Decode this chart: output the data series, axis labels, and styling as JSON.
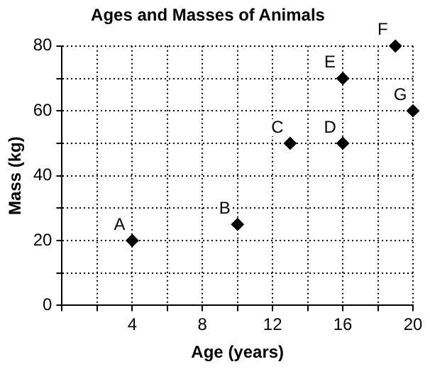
{
  "chart_data": {
    "type": "scatter",
    "title": "Ages and Masses of Animals",
    "xlabel": "Age (years)",
    "ylabel": "Mass (kg)",
    "x": [
      4,
      10,
      13,
      16,
      16,
      19,
      20
    ],
    "series": [
      {
        "color": "#000000",
        "values": [
          20,
          25,
          50,
          50,
          70,
          80,
          60
        ]
      }
    ],
    "annotations": [
      {
        "text": "A",
        "x": 4,
        "y": 20
      },
      {
        "text": "B",
        "x": 10,
        "y": 25
      },
      {
        "text": "C",
        "x": 13,
        "y": 50
      },
      {
        "text": "D",
        "x": 16,
        "y": 50
      },
      {
        "text": "E",
        "x": 16,
        "y": 70
      },
      {
        "text": "F",
        "x": 19,
        "y": 80
      },
      {
        "text": "G",
        "x": 20,
        "y": 60
      }
    ],
    "xlim": [
      0,
      20
    ],
    "ylim": [
      0,
      80
    ],
    "xticks": [
      {
        "value": 0,
        "label": null
      },
      {
        "value": 2,
        "label": null
      },
      4,
      {
        "value": 6,
        "label": null
      },
      8,
      {
        "value": 10,
        "label": null
      },
      12,
      {
        "value": 14,
        "label": null
      },
      16,
      {
        "value": 18,
        "label": null
      },
      20
    ],
    "yticks": [
      0,
      {
        "value": 10,
        "label": null
      },
      20,
      {
        "value": 30,
        "label": null
      },
      40,
      {
        "value": 50,
        "label": null
      },
      60,
      {
        "value": 70,
        "label": null
      },
      80
    ],
    "grid": true,
    "marker": "diamond",
    "legend": false
  }
}
